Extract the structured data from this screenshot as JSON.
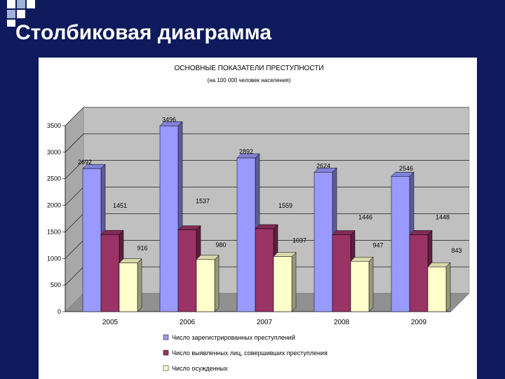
{
  "slide": {
    "title": "Столбиковая диаграмма"
  },
  "chart_data": {
    "type": "bar",
    "title": "ОСНОВНЫЕ ПОКАЗАТЕЛИ ПРЕСТУПНОСТИ",
    "subtitle": "(на 100 000 человек населения)",
    "xlabel": "",
    "ylabel": "",
    "categories": [
      "2005",
      "2006",
      "2007",
      "2008",
      "2009"
    ],
    "ylim": [
      0,
      3500
    ],
    "yticks": [
      0,
      500,
      1000,
      1500,
      2000,
      2500,
      3000,
      3500
    ],
    "grid": true,
    "legend_position": "bottom",
    "series": [
      {
        "name": "Число зарегистрированных преступлений",
        "color": "#9999ff",
        "values": [
          2692,
          3496,
          2892,
          2624,
          2546
        ]
      },
      {
        "name": "Число выявленных лиц, совершивших преступления",
        "color": "#993366",
        "values": [
          1451,
          1537,
          1559,
          1446,
          1448
        ]
      },
      {
        "name": "Число осужденных",
        "color": "#ffffcc",
        "values": [
          916,
          980,
          1037,
          947,
          843
        ]
      }
    ]
  }
}
